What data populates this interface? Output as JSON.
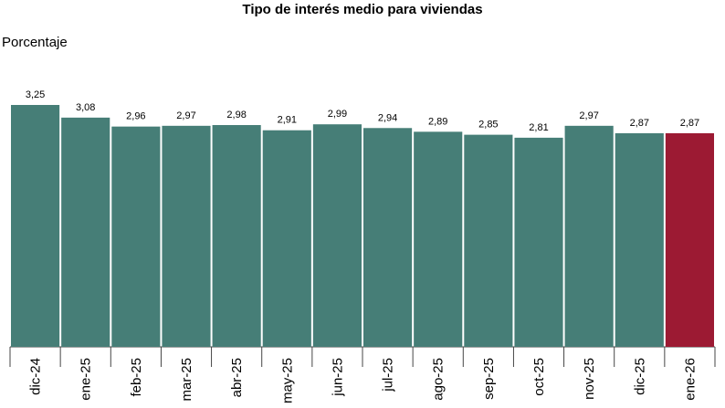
{
  "chart_data": {
    "type": "bar",
    "title": "Tipo de interés medio para viviendas",
    "ylabel": "Porcentaje",
    "xlabel": "",
    "categories": [
      "dic-24",
      "ene-25",
      "feb-25",
      "mar-25",
      "abr-25",
      "may-25",
      "jun-25",
      "jul-25",
      "ago-25",
      "sep-25",
      "oct-25",
      "nov-25",
      "dic-25",
      "ene-26"
    ],
    "values": [
      3.25,
      3.08,
      2.96,
      2.97,
      2.98,
      2.91,
      2.99,
      2.94,
      2.89,
      2.85,
      2.81,
      2.97,
      2.87,
      2.87
    ],
    "value_labels": [
      "3,25",
      "3,08",
      "2,96",
      "2,97",
      "2,98",
      "2,91",
      "2,99",
      "2,94",
      "2,89",
      "2,85",
      "2,81",
      "2,97",
      "2,87",
      "2,87"
    ],
    "colors": {
      "default": "#467e77",
      "highlight": "#9c1a33"
    },
    "highlight_index": 13,
    "ylim": [
      0,
      3.25
    ],
    "grid": false,
    "legend": "none"
  }
}
